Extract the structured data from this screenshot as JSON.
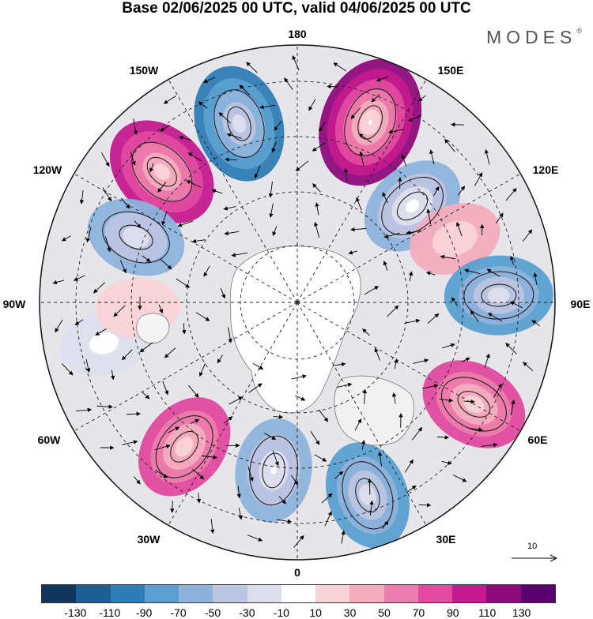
{
  "title": "Base 02/06/2025 00 UTC, valid 04/06/2025 00 UTC",
  "brand": "MODES",
  "brand_mark": "®",
  "map": {
    "projection": "north-polar-stereographic",
    "longitude_labels": [
      "180",
      "150E",
      "120E",
      "90E",
      "60E",
      "30E",
      "0",
      "30W",
      "60W",
      "90W",
      "120W",
      "150W"
    ],
    "reference_vector": "10",
    "anomaly_centers": [
      {
        "lon": -162,
        "value": -95
      },
      {
        "lon": 158,
        "value": 125
      },
      {
        "lon": 130,
        "value": -70
      },
      {
        "lon": -134,
        "value": 95
      },
      {
        "lon": -112,
        "value": -55
      },
      {
        "lon": 112,
        "value": 40
      },
      {
        "lon": 92,
        "value": -75
      },
      {
        "lon": 60,
        "value": 75
      },
      {
        "lon": 20,
        "value": -75
      },
      {
        "lon": -8,
        "value": -65
      },
      {
        "lon": -38,
        "value": 75
      },
      {
        "lon": -78,
        "value": -30
      },
      {
        "lon": -88,
        "value": 20
      }
    ]
  },
  "colorbar": {
    "ticks": [
      "-130",
      "-110",
      "-90",
      "-70",
      "-50",
      "-30",
      "-10",
      "10",
      "30",
      "50",
      "70",
      "90",
      "110",
      "130"
    ],
    "colors": [
      "#12355c",
      "#1d5f92",
      "#2f7db6",
      "#5a9fd0",
      "#8eb3db",
      "#bcc5e2",
      "#dedfed",
      "#ffffff",
      "#f7d3d7",
      "#f3adbe",
      "#ec7cab",
      "#e14a9f",
      "#c41a8e",
      "#8e0b7c",
      "#58006c"
    ]
  }
}
